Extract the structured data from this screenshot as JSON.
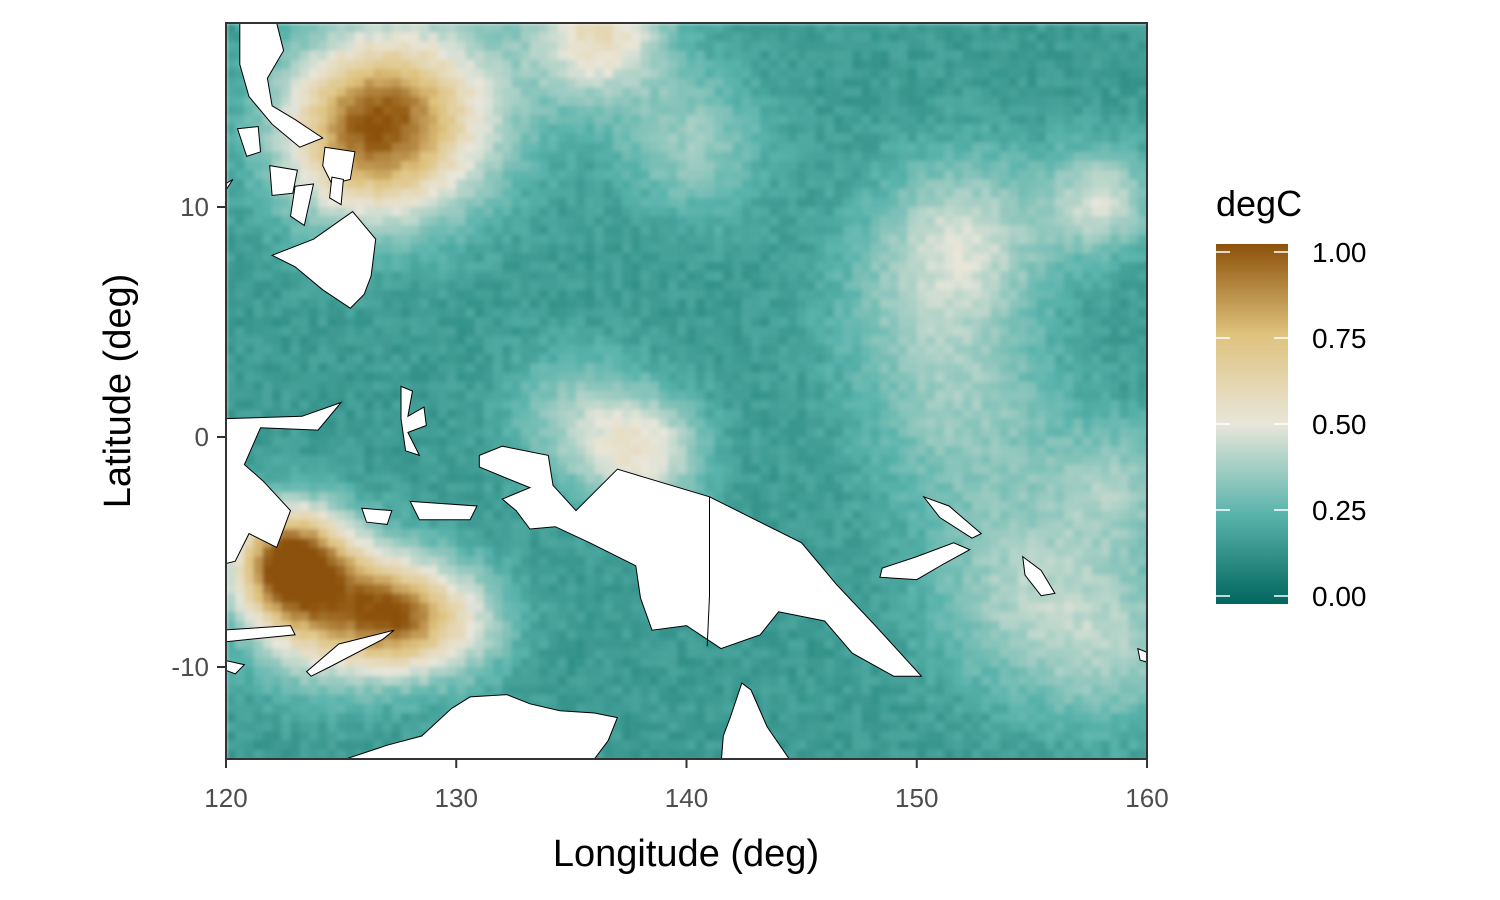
{
  "colors": {
    "low": "#01665e",
    "mid_low": "#5ab4ac",
    "mid": "#e8e6da",
    "mid_high": "#dfc27d",
    "high": "#8c510a",
    "land": "#ffffff",
    "panel_border": "#333333"
  },
  "chart_data": {
    "type": "heatmap",
    "xlabel": "Longitude (deg)",
    "ylabel": "Latitude (deg)",
    "xlim": [
      120,
      160
    ],
    "ylim": [
      -14,
      18
    ],
    "xticks": [
      120,
      130,
      140,
      150,
      160
    ],
    "yticks": [
      -10,
      0,
      10
    ],
    "xtick_labels": [
      "120",
      "130",
      "140",
      "150",
      "160"
    ],
    "ytick_labels": [
      "-10",
      "0",
      "10"
    ],
    "grid": false,
    "legend": {
      "title": "degC",
      "position": "right",
      "limits": [
        0,
        1
      ],
      "breaks": [
        0,
        0.25,
        0.5,
        0.75,
        1
      ],
      "break_labels": [
        "0.00",
        "0.25",
        "0.50",
        "0.75",
        "1.00"
      ]
    },
    "background_value": 0.17,
    "hotspots": [
      {
        "lon": 125.8,
        "lat": 13.5,
        "value": 0.78,
        "spread": 2.6
      },
      {
        "lon": 128.5,
        "lat": 14.5,
        "value": 0.5,
        "spread": 3.0
      },
      {
        "lon": 136.0,
        "lat": 17.8,
        "value": 0.58,
        "spread": 2.0
      },
      {
        "lon": 122.5,
        "lat": -5.2,
        "value": 0.88,
        "spread": 1.6
      },
      {
        "lon": 124.0,
        "lat": -7.0,
        "value": 0.72,
        "spread": 2.2
      },
      {
        "lon": 127.0,
        "lat": -7.6,
        "value": 0.68,
        "spread": 1.6
      },
      {
        "lon": 129.5,
        "lat": -7.8,
        "value": 0.5,
        "spread": 1.8
      },
      {
        "lon": 138.0,
        "lat": -0.5,
        "value": 0.5,
        "spread": 1.8
      },
      {
        "lon": 135.0,
        "lat": 1.0,
        "value": 0.36,
        "spread": 2.0
      },
      {
        "lon": 140.0,
        "lat": 13.0,
        "value": 0.36,
        "spread": 2.2
      },
      {
        "lon": 152.0,
        "lat": 9.0,
        "value": 0.4,
        "spread": 2.5
      },
      {
        "lon": 157.8,
        "lat": 10.5,
        "value": 0.45,
        "spread": 1.6
      },
      {
        "lon": 154.5,
        "lat": -6.5,
        "value": 0.38,
        "spread": 3.0
      },
      {
        "lon": 158.5,
        "lat": -9.0,
        "value": 0.34,
        "spread": 2.5
      },
      {
        "lon": 152.0,
        "lat": 1.0,
        "value": 0.33,
        "spread": 3.0
      },
      {
        "lon": 158.5,
        "lat": -2.0,
        "value": 0.35,
        "spread": 2.0
      },
      {
        "lon": 150.0,
        "lat": 6.0,
        "value": 0.3,
        "spread": 3.0
      }
    ],
    "land": [
      {
        "name": "luzon",
        "points": [
          [
            120.6,
            18.0
          ],
          [
            122.2,
            18.0
          ],
          [
            122.5,
            16.8
          ],
          [
            121.8,
            15.6
          ],
          [
            122.0,
            14.4
          ],
          [
            123.0,
            13.8
          ],
          [
            124.2,
            13.0
          ],
          [
            123.2,
            12.6
          ],
          [
            122.0,
            13.6
          ],
          [
            121.0,
            14.8
          ],
          [
            120.6,
            16.2
          ]
        ]
      },
      {
        "name": "mindoro",
        "points": [
          [
            120.5,
            13.4
          ],
          [
            121.4,
            13.5
          ],
          [
            121.5,
            12.4
          ],
          [
            120.9,
            12.2
          ]
        ]
      },
      {
        "name": "samar",
        "points": [
          [
            124.3,
            12.6
          ],
          [
            125.6,
            12.4
          ],
          [
            125.4,
            11.2
          ],
          [
            124.6,
            11.0
          ],
          [
            124.2,
            11.8
          ]
        ]
      },
      {
        "name": "panay",
        "points": [
          [
            121.9,
            11.8
          ],
          [
            123.1,
            11.6
          ],
          [
            122.9,
            10.6
          ],
          [
            122.0,
            10.5
          ]
        ]
      },
      {
        "name": "negros-cebu",
        "points": [
          [
            123.0,
            10.9
          ],
          [
            123.8,
            11.0
          ],
          [
            123.4,
            9.2
          ],
          [
            122.8,
            9.6
          ]
        ]
      },
      {
        "name": "leyte",
        "points": [
          [
            124.6,
            11.3
          ],
          [
            125.1,
            11.2
          ],
          [
            125.0,
            10.1
          ],
          [
            124.5,
            10.4
          ]
        ]
      },
      {
        "name": "palawan",
        "points": [
          [
            119.8,
            10.9
          ],
          [
            120.3,
            11.2
          ],
          [
            119.0,
            9.2
          ],
          [
            118.6,
            9.4
          ]
        ]
      },
      {
        "name": "mindanao",
        "points": [
          [
            122.0,
            7.9
          ],
          [
            123.8,
            8.6
          ],
          [
            125.5,
            9.8
          ],
          [
            126.5,
            8.6
          ],
          [
            126.3,
            7.0
          ],
          [
            126.0,
            6.2
          ],
          [
            125.4,
            5.6
          ],
          [
            124.2,
            6.4
          ],
          [
            123.0,
            7.4
          ]
        ]
      },
      {
        "name": "sulawesi",
        "points": [
          [
            120.0,
            0.8
          ],
          [
            123.3,
            0.9
          ],
          [
            125.0,
            1.5
          ],
          [
            124.0,
            0.3
          ],
          [
            121.5,
            0.4
          ],
          [
            120.8,
            -1.2
          ],
          [
            121.6,
            -1.9
          ],
          [
            122.8,
            -3.2
          ],
          [
            122.2,
            -4.8
          ],
          [
            121.0,
            -4.2
          ],
          [
            120.4,
            -5.4
          ],
          [
            119.6,
            -5.6
          ],
          [
            119.8,
            -3.2
          ],
          [
            119.2,
            -2.4
          ],
          [
            119.6,
            -0.6
          ],
          [
            120.0,
            0.1
          ]
        ]
      },
      {
        "name": "halmahera",
        "points": [
          [
            127.6,
            2.2
          ],
          [
            128.1,
            2.0
          ],
          [
            127.9,
            0.9
          ],
          [
            128.6,
            1.3
          ],
          [
            128.7,
            0.5
          ],
          [
            127.9,
            0.2
          ],
          [
            128.4,
            -0.8
          ],
          [
            127.8,
            -0.6
          ],
          [
            127.6,
            0.8
          ]
        ]
      },
      {
        "name": "seram",
        "points": [
          [
            128.0,
            -2.8
          ],
          [
            130.9,
            -3.0
          ],
          [
            130.6,
            -3.6
          ],
          [
            128.4,
            -3.6
          ]
        ]
      },
      {
        "name": "buru",
        "points": [
          [
            125.9,
            -3.1
          ],
          [
            127.2,
            -3.2
          ],
          [
            127.0,
            -3.8
          ],
          [
            126.1,
            -3.7
          ]
        ]
      },
      {
        "name": "timor",
        "points": [
          [
            123.5,
            -10.2
          ],
          [
            124.9,
            -9.0
          ],
          [
            127.3,
            -8.4
          ],
          [
            126.8,
            -8.8
          ],
          [
            124.5,
            -10.0
          ],
          [
            123.7,
            -10.4
          ]
        ]
      },
      {
        "name": "flores",
        "points": [
          [
            119.8,
            -8.4
          ],
          [
            122.8,
            -8.2
          ],
          [
            123.0,
            -8.6
          ],
          [
            120.0,
            -8.9
          ]
        ]
      },
      {
        "name": "sumba",
        "points": [
          [
            119.0,
            -9.5
          ],
          [
            120.8,
            -9.9
          ],
          [
            120.4,
            -10.3
          ],
          [
            119.1,
            -9.8
          ]
        ]
      },
      {
        "name": "new-guinea",
        "points": [
          [
            131.0,
            -0.8
          ],
          [
            132.0,
            -0.4
          ],
          [
            134.0,
            -0.8
          ],
          [
            134.2,
            -2.1
          ],
          [
            135.2,
            -3.2
          ],
          [
            137.0,
            -1.4
          ],
          [
            141.0,
            -2.6
          ],
          [
            145.0,
            -4.6
          ],
          [
            146.5,
            -6.4
          ],
          [
            148.2,
            -8.2
          ],
          [
            150.2,
            -10.4
          ],
          [
            149.0,
            -10.4
          ],
          [
            147.2,
            -9.4
          ],
          [
            146.0,
            -8.0
          ],
          [
            144.0,
            -7.6
          ],
          [
            143.2,
            -8.6
          ],
          [
            141.5,
            -9.2
          ],
          [
            140.0,
            -8.2
          ],
          [
            138.5,
            -8.4
          ],
          [
            138.0,
            -7.0
          ],
          [
            137.8,
            -5.6
          ],
          [
            135.8,
            -4.6
          ],
          [
            134.3,
            -3.9
          ],
          [
            133.2,
            -4.0
          ],
          [
            132.6,
            -3.2
          ],
          [
            132.0,
            -2.7
          ],
          [
            133.2,
            -2.2
          ],
          [
            132.2,
            -1.8
          ],
          [
            131.0,
            -1.3
          ]
        ]
      },
      {
        "name": "new-britain",
        "points": [
          [
            148.5,
            -5.7
          ],
          [
            150.0,
            -5.2
          ],
          [
            151.6,
            -4.6
          ],
          [
            152.3,
            -4.9
          ],
          [
            151.2,
            -5.5
          ],
          [
            150.0,
            -6.2
          ],
          [
            148.4,
            -6.1
          ]
        ]
      },
      {
        "name": "new-ireland",
        "points": [
          [
            150.3,
            -2.6
          ],
          [
            151.4,
            -3.0
          ],
          [
            152.8,
            -4.2
          ],
          [
            152.4,
            -4.4
          ],
          [
            151.0,
            -3.5
          ]
        ]
      },
      {
        "name": "bougainville",
        "points": [
          [
            154.6,
            -5.2
          ],
          [
            155.4,
            -5.8
          ],
          [
            156.0,
            -6.8
          ],
          [
            155.4,
            -6.9
          ],
          [
            154.7,
            -6.0
          ]
        ]
      },
      {
        "name": "guadalcanal",
        "points": [
          [
            159.6,
            -9.2
          ],
          [
            160.6,
            -9.6
          ],
          [
            160.4,
            -9.9
          ],
          [
            159.7,
            -9.7
          ]
        ]
      },
      {
        "name": "malaita",
        "points": [
          [
            160.6,
            -8.4
          ],
          [
            161.2,
            -9.2
          ],
          [
            160.9,
            -9.5
          ],
          [
            160.5,
            -8.8
          ]
        ]
      },
      {
        "name": "australia",
        "points": [
          [
            125.2,
            -14.0
          ],
          [
            127.0,
            -13.4
          ],
          [
            128.5,
            -13.0
          ],
          [
            129.8,
            -11.8
          ],
          [
            130.6,
            -11.3
          ],
          [
            132.2,
            -11.2
          ],
          [
            133.2,
            -11.6
          ],
          [
            134.5,
            -11.9
          ],
          [
            136.0,
            -12.0
          ],
          [
            137.0,
            -12.2
          ],
          [
            136.6,
            -13.2
          ],
          [
            136.0,
            -14.0
          ],
          [
            138.0,
            -14.6
          ],
          [
            139.5,
            -16.0
          ],
          [
            141.4,
            -15.5
          ],
          [
            141.6,
            -13.0
          ],
          [
            141.9,
            -12.2
          ],
          [
            142.4,
            -10.7
          ],
          [
            142.8,
            -11.0
          ],
          [
            143.5,
            -12.6
          ],
          [
            144.6,
            -14.2
          ],
          [
            145.3,
            -15.0
          ],
          [
            145.6,
            -16.0
          ],
          [
            125.0,
            -16.0
          ]
        ]
      }
    ],
    "borders": [
      {
        "name": "indonesia-png",
        "points": [
          [
            141.0,
            -2.6
          ],
          [
            141.0,
            -6.9
          ],
          [
            140.9,
            -9.1
          ]
        ]
      }
    ]
  }
}
